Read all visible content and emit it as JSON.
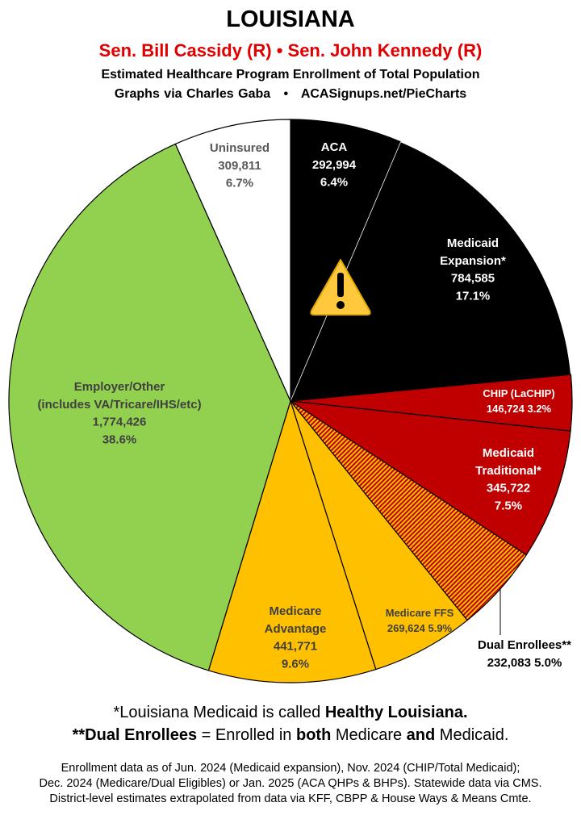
{
  "header": {
    "title": "LOUISIANA",
    "senators": "Sen. Bill Cassidy (R) • Sen. John Kennedy (R)",
    "subtitle": "Estimated Healthcare Program Enrollment of Total Population",
    "credit": "Graphs via Charles Gaba   •   ACASignups.net/PieCharts"
  },
  "chart_data": {
    "type": "pie",
    "start": "top, clockwise",
    "slices": [
      {
        "label_lines": [
          "ACA"
        ],
        "value": 292994,
        "value_text": "292,994",
        "percent_text": "6.4%",
        "percent": 6.4,
        "color": "#000000",
        "text_color": "#ffffff"
      },
      {
        "label_lines": [
          "Medicaid",
          "Expansion*"
        ],
        "value": 784585,
        "value_text": "784,585",
        "percent_text": "17.1%",
        "percent": 17.1,
        "color": "#000000",
        "text_color": "#ffffff",
        "icon": "warning-icon"
      },
      {
        "label_lines": [
          "CHIP (LaCHIP)"
        ],
        "value": 146724,
        "value_text": "146,724 3.2%",
        "percent_text": "",
        "percent": 3.2,
        "color": "#c00000",
        "text_color": "#ffffff"
      },
      {
        "label_lines": [
          "Medicaid",
          "Traditional*"
        ],
        "value": 345722,
        "value_text": "345,722",
        "percent_text": "7.5%",
        "percent": 7.5,
        "color": "#c00000",
        "text_color": "#ffffff"
      },
      {
        "label_lines": [
          "Dual Enrollees**"
        ],
        "value": 232083,
        "value_text": "232,083 5.0%",
        "percent_text": "",
        "percent": 5.0,
        "color": "hatch:#c00000/#ffc000",
        "text_color": "#000000"
      },
      {
        "label_lines": [
          "Medicare FFS"
        ],
        "value": 269624,
        "value_text": "269,624 5.9%",
        "percent_text": "",
        "percent": 5.9,
        "color": "#ffc000",
        "text_color": "#404040"
      },
      {
        "label_lines": [
          "Medicare",
          "Advantage"
        ],
        "value": 441771,
        "value_text": "441,771",
        "percent_text": "9.6%",
        "percent": 9.6,
        "color": "#ffc000",
        "text_color": "#404040"
      },
      {
        "label_lines": [
          "Employer/Other",
          "(includes VA/Tricare/IHS/etc)"
        ],
        "value": 1774426,
        "value_text": "1,774,426",
        "percent_text": "38.6%",
        "percent": 38.6,
        "color": "#92d050",
        "text_color": "#404040"
      },
      {
        "label_lines": [
          "Uninsured"
        ],
        "value": 309811,
        "value_text": "309,811",
        "percent_text": "6.7%",
        "percent": 6.7,
        "color": "#ffffff",
        "text_color": "#595959"
      }
    ]
  },
  "notes": {
    "note1": {
      "pre": "*Louisiana Medicaid is called ",
      "bold": "Healthy Louisiana."
    },
    "note2": {
      "b1": "**Dual Enrollees",
      "t1": " = Enrolled in ",
      "b2": "both",
      "t2": " Medicare ",
      "b3": "and",
      "t3": " Medicaid."
    },
    "footer": [
      "Enrollment data as of Jun. 2024 (Medicaid expansion), Nov. 2024 (CHIP/Total Medicaid);",
      "Dec. 2024 (Medicare/Dual Eligibles) or Jan. 2025 (ACA QHPs & BHPs). Statewide data via CMS.",
      "District-level estimates extrapolated from data via KFF, CBPP & House Ways & Means Cmte."
    ]
  }
}
